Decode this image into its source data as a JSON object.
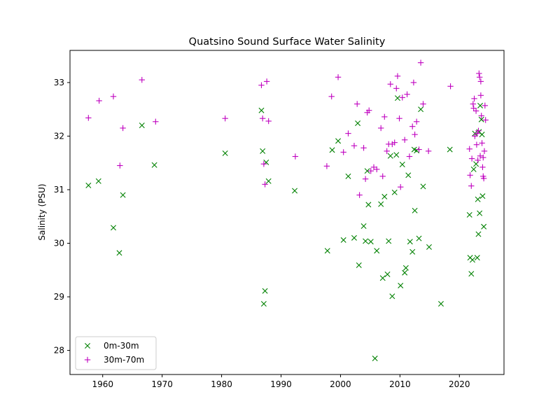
{
  "chart_data": {
    "type": "scatter",
    "title": "Quatsino Sound Surface Water Salinity",
    "xlabel": "",
    "ylabel": "Salinity (PSU)",
    "xlim": [
      1954.5,
      2027.5
    ],
    "ylim": [
      27.55,
      33.6
    ],
    "xticks": [
      1960,
      1970,
      1980,
      1990,
      2000,
      2010,
      2020
    ],
    "yticks": [
      28,
      29,
      30,
      31,
      32,
      33
    ],
    "grid": false,
    "legend": "lower-left",
    "series": [
      {
        "name": "0m-30m",
        "marker": "x",
        "color": "#008000",
        "points": [
          [
            1957.6,
            31.08
          ],
          [
            1959.3,
            31.16
          ],
          [
            1961.8,
            30.29
          ],
          [
            1962.8,
            29.82
          ],
          [
            1963.4,
            30.9
          ],
          [
            1966.6,
            32.2
          ],
          [
            1968.7,
            31.46
          ],
          [
            1980.6,
            31.68
          ],
          [
            1986.7,
            32.48
          ],
          [
            1986.9,
            31.72
          ],
          [
            1987.1,
            28.87
          ],
          [
            1987.3,
            29.11
          ],
          [
            1987.5,
            31.51
          ],
          [
            1987.9,
            31.16
          ],
          [
            1992.3,
            30.98
          ],
          [
            1997.8,
            29.86
          ],
          [
            1998.6,
            31.74
          ],
          [
            1999.6,
            31.91
          ],
          [
            2000.5,
            30.06
          ],
          [
            2001.3,
            31.25
          ],
          [
            2002.3,
            30.1
          ],
          [
            2002.9,
            32.24
          ],
          [
            2003.1,
            29.59
          ],
          [
            2003.9,
            30.32
          ],
          [
            2004.2,
            30.04
          ],
          [
            2004.5,
            31.35
          ],
          [
            2004.7,
            30.72
          ],
          [
            2005.1,
            30.03
          ],
          [
            2005.8,
            27.85
          ],
          [
            2006.1,
            29.86
          ],
          [
            2006.8,
            30.73
          ],
          [
            2007.1,
            29.35
          ],
          [
            2007.4,
            30.87
          ],
          [
            2007.9,
            29.42
          ],
          [
            2008.1,
            30.04
          ],
          [
            2008.4,
            31.63
          ],
          [
            2008.7,
            29.01
          ],
          [
            2009.1,
            30.95
          ],
          [
            2009.4,
            31.65
          ],
          [
            2009.6,
            32.71
          ],
          [
            2010.1,
            29.21
          ],
          [
            2010.4,
            31.47
          ],
          [
            2010.8,
            29.45
          ],
          [
            2011.0,
            29.54
          ],
          [
            2011.4,
            31.27
          ],
          [
            2011.7,
            30.03
          ],
          [
            2012.1,
            29.84
          ],
          [
            2012.4,
            31.75
          ],
          [
            2012.5,
            30.61
          ],
          [
            2012.8,
            31.73
          ],
          [
            2013.2,
            30.09
          ],
          [
            2013.5,
            32.5
          ],
          [
            2013.9,
            31.06
          ],
          [
            2014.9,
            29.93
          ],
          [
            2016.9,
            28.87
          ],
          [
            2018.4,
            31.75
          ],
          [
            2021.7,
            30.53
          ],
          [
            2021.8,
            29.73
          ],
          [
            2022.0,
            29.43
          ],
          [
            2022.2,
            29.69
          ],
          [
            2022.4,
            31.38
          ],
          [
            2022.6,
            32.05
          ],
          [
            2022.8,
            31.48
          ],
          [
            2023.0,
            29.73
          ],
          [
            2023.1,
            30.82
          ],
          [
            2023.2,
            30.17
          ],
          [
            2023.3,
            32.08
          ],
          [
            2023.4,
            30.56
          ],
          [
            2023.5,
            32.57
          ],
          [
            2023.7,
            32.31
          ],
          [
            2023.8,
            32.03
          ],
          [
            2023.9,
            30.88
          ],
          [
            2024.1,
            30.31
          ]
        ]
      },
      {
        "name": "30m-70m",
        "marker": "+",
        "color": "#bf00bf",
        "points": [
          [
            1957.6,
            32.34
          ],
          [
            1959.4,
            32.66
          ],
          [
            1961.8,
            32.74
          ],
          [
            1962.9,
            31.45
          ],
          [
            1963.4,
            32.15
          ],
          [
            1966.6,
            33.05
          ],
          [
            1968.9,
            32.27
          ],
          [
            1980.6,
            32.33
          ],
          [
            1986.7,
            32.95
          ],
          [
            1986.9,
            32.33
          ],
          [
            1987.1,
            31.48
          ],
          [
            1987.3,
            31.1
          ],
          [
            1987.6,
            33.02
          ],
          [
            1987.9,
            32.28
          ],
          [
            1992.4,
            31.62
          ],
          [
            1997.7,
            31.44
          ],
          [
            1998.5,
            32.74
          ],
          [
            1999.6,
            33.1
          ],
          [
            2000.5,
            31.7
          ],
          [
            2001.3,
            32.05
          ],
          [
            2002.3,
            31.82
          ],
          [
            2002.8,
            32.6
          ],
          [
            2003.2,
            30.9
          ],
          [
            2003.9,
            31.78
          ],
          [
            2004.2,
            31.2
          ],
          [
            2004.5,
            32.44
          ],
          [
            2004.8,
            32.48
          ],
          [
            2005.1,
            31.35
          ],
          [
            2005.6,
            31.42
          ],
          [
            2006.1,
            31.38
          ],
          [
            2006.8,
            32.15
          ],
          [
            2007.1,
            31.25
          ],
          [
            2007.4,
            32.36
          ],
          [
            2007.8,
            31.72
          ],
          [
            2008.1,
            31.85
          ],
          [
            2008.4,
            32.97
          ],
          [
            2008.7,
            31.85
          ],
          [
            2009.1,
            31.88
          ],
          [
            2009.4,
            32.89
          ],
          [
            2009.6,
            33.12
          ],
          [
            2009.9,
            32.33
          ],
          [
            2010.1,
            31.05
          ],
          [
            2010.4,
            32.72
          ],
          [
            2010.8,
            31.93
          ],
          [
            2011.2,
            32.78
          ],
          [
            2011.6,
            31.62
          ],
          [
            2012.1,
            32.18
          ],
          [
            2012.3,
            33.0
          ],
          [
            2012.5,
            32.03
          ],
          [
            2012.8,
            32.27
          ],
          [
            2013.2,
            31.75
          ],
          [
            2013.5,
            33.37
          ],
          [
            2013.9,
            32.6
          ],
          [
            2014.8,
            31.72
          ],
          [
            2018.5,
            32.93
          ],
          [
            2021.7,
            31.76
          ],
          [
            2021.8,
            31.27
          ],
          [
            2022.0,
            31.07
          ],
          [
            2022.1,
            31.58
          ],
          [
            2022.3,
            32.6
          ],
          [
            2022.4,
            32.52
          ],
          [
            2022.5,
            32.7
          ],
          [
            2022.6,
            32.0
          ],
          [
            2022.8,
            32.47
          ],
          [
            2022.9,
            31.84
          ],
          [
            2023.0,
            32.05
          ],
          [
            2023.1,
            31.55
          ],
          [
            2023.2,
            32.1
          ],
          [
            2023.3,
            33.17
          ],
          [
            2023.4,
            33.1
          ],
          [
            2023.5,
            31.63
          ],
          [
            2023.6,
            33.02
          ],
          [
            2023.6,
            32.76
          ],
          [
            2023.7,
            32.38
          ],
          [
            2023.8,
            31.87
          ],
          [
            2023.9,
            31.42
          ],
          [
            2024.0,
            31.6
          ],
          [
            2024.0,
            31.25
          ],
          [
            2024.1,
            31.21
          ],
          [
            2024.2,
            31.72
          ],
          [
            2024.3,
            32.57
          ],
          [
            2024.4,
            32.3
          ]
        ]
      }
    ]
  }
}
